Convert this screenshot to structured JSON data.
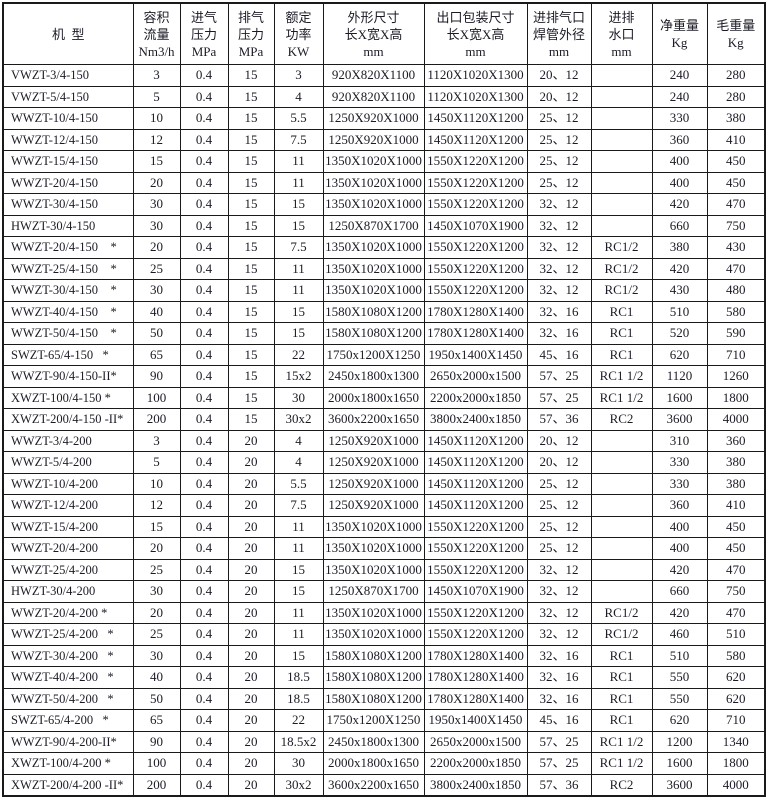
{
  "page": {
    "background_color": "#ffffff",
    "text_color": "#1b1b26",
    "border_color": "#1a1a1a"
  },
  "table": {
    "column_keys": [
      "model",
      "volume-flow",
      "inlet-pressure",
      "exhaust-pressure",
      "rated-power",
      "dimensions",
      "packaging-dimensions",
      "pipe-outer-diameter",
      "water-port",
      "net-weight",
      "gross-weight"
    ],
    "headers": [
      {
        "lines": [
          "机  型"
        ]
      },
      {
        "lines": [
          "容积",
          "流量",
          "Nm3/h"
        ]
      },
      {
        "lines": [
          "进气",
          "压力",
          "MPa"
        ]
      },
      {
        "lines": [
          "排气",
          "压力",
          "MPa"
        ]
      },
      {
        "lines": [
          "额定",
          "功率",
          "KW"
        ]
      },
      {
        "lines": [
          "外形尺寸",
          "长X宽X高",
          "mm"
        ]
      },
      {
        "lines": [
          "出口包装尺寸",
          "长X宽X高",
          "mm"
        ]
      },
      {
        "lines": [
          "进排气口",
          "焊管外径",
          "mm"
        ]
      },
      {
        "lines": [
          "进排",
          "水口",
          "mm"
        ]
      },
      {
        "lines": [
          "净重量",
          "Kg"
        ]
      },
      {
        "lines": [
          "毛重量",
          "Kg"
        ]
      }
    ],
    "rows": [
      [
        "VWZT-3/4-150",
        "3",
        "0.4",
        "15",
        "3",
        "920X820X1100",
        "1120X1020X1300",
        "20、12",
        "",
        "240",
        "280"
      ],
      [
        "VWZT-5/4-150",
        "5",
        "0.4",
        "15",
        "4",
        "920X820X1100",
        "1120X1020X1300",
        "20、12",
        "",
        "240",
        "280"
      ],
      [
        "WWZT-10/4-150",
        "10",
        "0.4",
        "15",
        "5.5",
        "1250X920X1000",
        "1450X1120X1200",
        "25、12",
        "",
        "330",
        "380"
      ],
      [
        "WWZT-12/4-150",
        "12",
        "0.4",
        "15",
        "7.5",
        "1250X920X1000",
        "1450X1120X1200",
        "25、12",
        "",
        "360",
        "410"
      ],
      [
        "WWZT-15/4-150",
        "15",
        "0.4",
        "15",
        "11",
        "1350X1020X1000",
        "1550X1220X1200",
        "25、12",
        "",
        "400",
        "450"
      ],
      [
        "WWZT-20/4-150",
        "20",
        "0.4",
        "15",
        "11",
        "1350X1020X1000",
        "1550X1220X1200",
        "25、12",
        "",
        "400",
        "450"
      ],
      [
        "WWZT-30/4-150",
        "30",
        "0.4",
        "15",
        "15",
        "1350X1020X1000",
        "1550X1220X1200",
        "32、12",
        "",
        "420",
        "470"
      ],
      [
        "HWZT-30/4-150",
        "30",
        "0.4",
        "15",
        "15",
        "1250X870X1700",
        "1450X1070X1900",
        "32、12",
        "",
        "660",
        "750"
      ],
      [
        "WWZT-20/4-150    *",
        "20",
        "0.4",
        "15",
        "7.5",
        "1350X1020X1000",
        "1550X1220X1200",
        "32、12",
        "RC1/2",
        "380",
        "430"
      ],
      [
        "WWZT-25/4-150    *",
        "25",
        "0.4",
        "15",
        "11",
        "1350X1020X1000",
        "1550X1220X1200",
        "32、12",
        "RC1/2",
        "420",
        "470"
      ],
      [
        "WWZT-30/4-150    *",
        "30",
        "0.4",
        "15",
        "11",
        "1350X1020X1000",
        "1550X1220X1200",
        "32、12",
        "RC1/2",
        "430",
        "480"
      ],
      [
        "WWZT-40/4-150    *",
        "40",
        "0.4",
        "15",
        "15",
        "1580X1080X1200",
        "1780X1280X1400",
        "32、16",
        "RC1",
        "510",
        "580"
      ],
      [
        "WWZT-50/4-150    *",
        "50",
        "0.4",
        "15",
        "15",
        "1580X1080X1200",
        "1780X1280X1400",
        "32、16",
        "RC1",
        "520",
        "590"
      ],
      [
        "SWZT-65/4-150   *",
        "65",
        "0.4",
        "15",
        "22",
        "1750x1200X1250",
        "1950x1400X1450",
        "45、16",
        "RC1",
        "620",
        "710"
      ],
      [
        "WWZT-90/4-150-II*",
        "90",
        "0.4",
        "15",
        "15x2",
        "2450x1800x1300",
        "2650x2000x1500",
        "57、25",
        "RC1 1/2",
        "1120",
        "1260"
      ],
      [
        "XWZT-100/4-150 *",
        "100",
        "0.4",
        "15",
        "30",
        "2000x1800x1650",
        "2200x2000x1850",
        "57、25",
        "RC1 1/2",
        "1600",
        "1800"
      ],
      [
        "XWZT-200/4-150 -II*",
        "200",
        "0.4",
        "15",
        "30x2",
        "3600x2200x1650",
        "3800x2400x1850",
        "57、36",
        "RC2",
        "3600",
        "4000"
      ],
      [
        "WWZT-3/4-200",
        "3",
        "0.4",
        "20",
        "4",
        "1250X920X1000",
        "1450X1120X1200",
        "20、12",
        "",
        "310",
        "360"
      ],
      [
        "WWZT-5/4-200",
        "5",
        "0.4",
        "20",
        "4",
        "1250X920X1000",
        "1450X1120X1200",
        "20、12",
        "",
        "330",
        "380"
      ],
      [
        "WWZT-10/4-200",
        "10",
        "0.4",
        "20",
        "5.5",
        "1250X920X1000",
        "1450X1120X1200",
        "25、12",
        "",
        "330",
        "380"
      ],
      [
        "WWZT-12/4-200",
        "12",
        "0.4",
        "20",
        "7.5",
        "1250X920X1000",
        "1450X1120X1200",
        "25、12",
        "",
        "360",
        "410"
      ],
      [
        "WWZT-15/4-200",
        "15",
        "0.4",
        "20",
        "11",
        "1350X1020X1000",
        "1550X1220X1200",
        "25、12",
        "",
        "400",
        "450"
      ],
      [
        "WWZT-20/4-200",
        "20",
        "0.4",
        "20",
        "11",
        "1350X1020X1000",
        "1550X1220X1200",
        "25、12",
        "",
        "400",
        "450"
      ],
      [
        "WWZT-25/4-200",
        "25",
        "0.4",
        "20",
        "15",
        "1350X1020X1000",
        "1550X1220X1200",
        "32、12",
        "",
        "420",
        "470"
      ],
      [
        "HWZT-30/4-200",
        "30",
        "0.4",
        "20",
        "15",
        "1250X870X1700",
        "1450X1070X1900",
        "32、12",
        "",
        "660",
        "750"
      ],
      [
        "WWZT-20/4-200 *",
        "20",
        "0.4",
        "20",
        "11",
        "1350X1020X1000",
        "1550X1220X1200",
        "32、12",
        "RC1/2",
        "420",
        "470"
      ],
      [
        "WWZT-25/4-200   *",
        "25",
        "0.4",
        "20",
        "11",
        "1350X1020X1000",
        "1550X1220X1200",
        "32、12",
        "RC1/2",
        "460",
        "510"
      ],
      [
        "WWZT-30/4-200   *",
        "30",
        "0.4",
        "20",
        "15",
        "1580X1080X1200",
        "1780X1280X1400",
        "32、16",
        "RC1",
        "510",
        "580"
      ],
      [
        "WWZT-40/4-200   *",
        "40",
        "0.4",
        "20",
        "18.5",
        "1580X1080X1200",
        "1780X1280X1400",
        "32、16",
        "RC1",
        "550",
        "620"
      ],
      [
        "WWZT-50/4-200   *",
        "50",
        "0.4",
        "20",
        "18.5",
        "1580X1080X1200",
        "1780X1280X1400",
        "32、16",
        "RC1",
        "550",
        "620"
      ],
      [
        "SWZT-65/4-200   *",
        "65",
        "0.4",
        "20",
        "22",
        "1750x1200X1250",
        "1950x1400X1450",
        "45、16",
        "RC1",
        "620",
        "710"
      ],
      [
        "WWZT-90/4-200-II*",
        "90",
        "0.4",
        "20",
        "18.5x2",
        "2450x1800x1300",
        "2650x2000x1500",
        "57、25",
        "RC1 1/2",
        "1200",
        "1340"
      ],
      [
        "XWZT-100/4-200 *",
        "100",
        "0.4",
        "20",
        "30",
        "2000x1800x1650",
        "2200x2000x1850",
        "57、25",
        "RC1 1/2",
        "1600",
        "1800"
      ],
      [
        "XWZT-200/4-200 -II*",
        "200",
        "0.4",
        "20",
        "30x2",
        "3600x2200x1650",
        "3800x2400x1850",
        "57、36",
        "RC2",
        "3600",
        "4000"
      ]
    ]
  }
}
